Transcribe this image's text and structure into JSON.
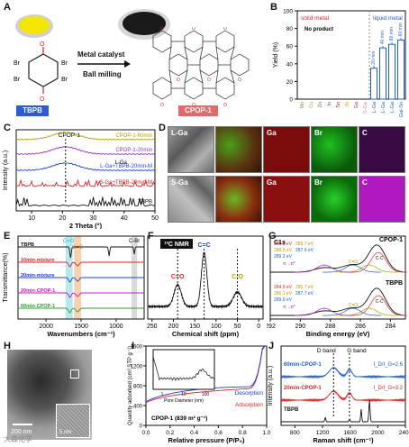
{
  "panels": {
    "A": "A",
    "B": "B",
    "C": "C",
    "D": "D",
    "E": "E",
    "F": "F",
    "G": "G",
    "H": "H",
    "I": "I",
    "J": "J"
  },
  "panelA": {
    "catalyst": "Metal catalyst",
    "milling": "Ball milling",
    "reactant": "TBPB",
    "product": "CPOP-1",
    "atoms": {
      "br": "Br",
      "o": "O"
    },
    "colors": {
      "reactant_box": "#2d5bd7",
      "product_box": "#e06a6a",
      "powder_yellow": "#f3e600",
      "powder_black": "#1a1a1a"
    }
  },
  "panelD": {
    "rows": [
      "L-Ga",
      "S-Ga"
    ],
    "channels": [
      "Ga",
      "Br",
      "C"
    ],
    "colors": {
      "Ga": "#c41414",
      "Br": "#17b317",
      "C": "#b218c4"
    }
  },
  "panelH": {
    "scale_big": "200 nm",
    "scale_small": "5 nm"
  },
  "watermark": "大森化学",
  "chart_data": [
    {
      "id": "B",
      "type": "bar",
      "ylabel": "Yield (%)",
      "ylim": [
        0,
        100
      ],
      "yticks": [
        0,
        20,
        40,
        60,
        80,
        100
      ],
      "categories": [
        "Mn",
        "Cu",
        "Zn",
        "In",
        "Sn",
        "Bi",
        "Ga",
        "S-Ga",
        "L-Ga",
        "L-Ga",
        "L-Ga",
        "Gal-Sn"
      ],
      "values": [
        0,
        0,
        0,
        0,
        0,
        0,
        0,
        0,
        35,
        58,
        62,
        67
      ],
      "error": [
        0,
        0,
        0,
        0,
        0,
        0,
        0,
        0,
        3,
        2,
        2,
        2
      ],
      "bar_labels": [
        "",
        "",
        "",
        "",
        "",
        "",
        "",
        "",
        "20 min",
        "40 min",
        "80 min",
        "60 min"
      ],
      "annotations": {
        "solid": "solid metal",
        "liquid": "liquid metal",
        "noproduct": "No product"
      },
      "colors": {
        "solid": "#d62728",
        "liquid": "#1f5fd6",
        "cats": [
          "#8c8c3c",
          "#c8a000",
          "#2ca02c",
          "#7a3fb5",
          "#d62728",
          "#d6b100",
          "#d62728",
          "#e377c2",
          "#1f5fd6",
          "#1f5fd6",
          "#1f5fd6",
          "#1f5fd6"
        ]
      }
    },
    {
      "id": "C",
      "type": "line",
      "xlabel": "2 Theta (°)",
      "ylabel": "Intensity (a.u.)",
      "xlim": [
        5,
        50
      ],
      "xticks": [
        10,
        20,
        30,
        40,
        50
      ],
      "series": [
        {
          "name": "CPOP-1-60min",
          "color": "#b5a000",
          "offset": 0.88
        },
        {
          "name": "CPOP-1-20min",
          "color": "#9b30c8",
          "offset": 0.7
        },
        {
          "name": "L-Ga+TBPB-20min-M",
          "color": "#1f3fd6",
          "offset": 0.5
        },
        {
          "name": "S-Ga+TBPB-20min-M",
          "color": "#d62728",
          "offset": 0.3
        },
        {
          "name": "TBPB",
          "color": "#111111",
          "offset": 0.06
        }
      ],
      "annotations": {
        "peak": "CPOP-1",
        "lga": "L-Ga"
      }
    },
    {
      "id": "E",
      "type": "line",
      "xlabel": "Wavenumbers (cm⁻¹)",
      "ylabel": "Transmittance(%)",
      "xlim": [
        2400,
        600
      ],
      "xticks": [
        2000,
        1500,
        1000
      ],
      "series": [
        {
          "name": "TBPB",
          "color": "#111111"
        },
        {
          "name": "10min-mixture",
          "color": "#d62728"
        },
        {
          "name": "20min-mixture",
          "color": "#1f3fd6"
        },
        {
          "name": "20min-CPOP-1",
          "color": "#c218c4"
        },
        {
          "name": "60min-CPOP-1",
          "color": "#2ca02c"
        }
      ],
      "bands": [
        {
          "label": "C=O",
          "color": "#19b7c7"
        },
        {
          "label": "C=C",
          "color": "#f0a060"
        },
        {
          "label": "C-Br",
          "color": "#aaaaaa"
        }
      ]
    },
    {
      "id": "F",
      "type": "line",
      "title": "¹³C NMR",
      "xlabel": "Chemical shift (ppm)",
      "xlim": [
        260,
        -10
      ],
      "xticks": [
        250,
        200,
        150,
        100,
        50,
        0
      ],
      "peaks": [
        {
          "label": "C=O",
          "ppm": 190
        },
        {
          "label": "C=C",
          "ppm": 128
        },
        {
          "label": "C-O",
          "ppm": 50
        }
      ]
    },
    {
      "id": "G",
      "type": "line",
      "xlabel": "Binding energy (eV)",
      "ylabel": "Intensity (a.u.)",
      "xlim": [
        292,
        283
      ],
      "xticks": [
        292,
        290,
        288,
        286,
        284
      ],
      "title": "C1s",
      "spectra": [
        {
          "name": "CPOP-1",
          "lines": [
            "289.3 eV",
            "288.6 eV",
            "289.2 eV"
          ],
          "lines2": [
            "289.7 eV",
            "287.6 eV"
          ]
        },
        {
          "name": "TBPB",
          "lines": [
            "284.9 eV",
            "286.1 eV",
            "289.9 eV"
          ],
          "lines2": [
            "285.7 eV",
            "287.7 eV"
          ]
        }
      ],
      "components": [
        "C-C",
        "C=C",
        "C=O",
        "C-Br",
        "π→π*"
      ]
    },
    {
      "id": "I",
      "type": "line",
      "xlabel": "Relative pressure (P/P₀)",
      "ylabel": "Quantity adsorbed (cm³ STP g⁻¹)",
      "xlim": [
        0,
        1
      ],
      "xticks": [
        0.0,
        0.2,
        0.4,
        0.6,
        0.8,
        1.0
      ],
      "ylim": [
        0,
        1600
      ],
      "yticks": [
        0,
        400,
        800,
        1200,
        1600
      ],
      "series": [
        {
          "name": "Adsorption",
          "color": "#d62728"
        },
        {
          "name": "Desorption",
          "color": "#1f3fd6"
        }
      ],
      "label": "CPOP-1 (839 m² g⁻¹)",
      "inset": {
        "xlabel": "Pore Diameter (nm)",
        "xticks": [
          "1",
          "10",
          "100"
        ]
      }
    },
    {
      "id": "J",
      "type": "line",
      "xlabel": "Raman shift (cm⁻¹)",
      "ylabel": "Intensity (a.u.)",
      "xlim": [
        600,
        2400
      ],
      "xticks": [
        800,
        1200,
        1600,
        2000,
        2400
      ],
      "series": [
        {
          "name": "60min-CPOP-1",
          "color": "#1f5fd6",
          "ratio": "I_D/I_G=2.6"
        },
        {
          "name": "20min-CPOP-1",
          "color": "#d62728",
          "ratio": "I_D/I_G=3.2"
        },
        {
          "name": "TBPB",
          "color": "#111111"
        }
      ],
      "bands": {
        "D": "D band",
        "G": "G band"
      }
    }
  ]
}
